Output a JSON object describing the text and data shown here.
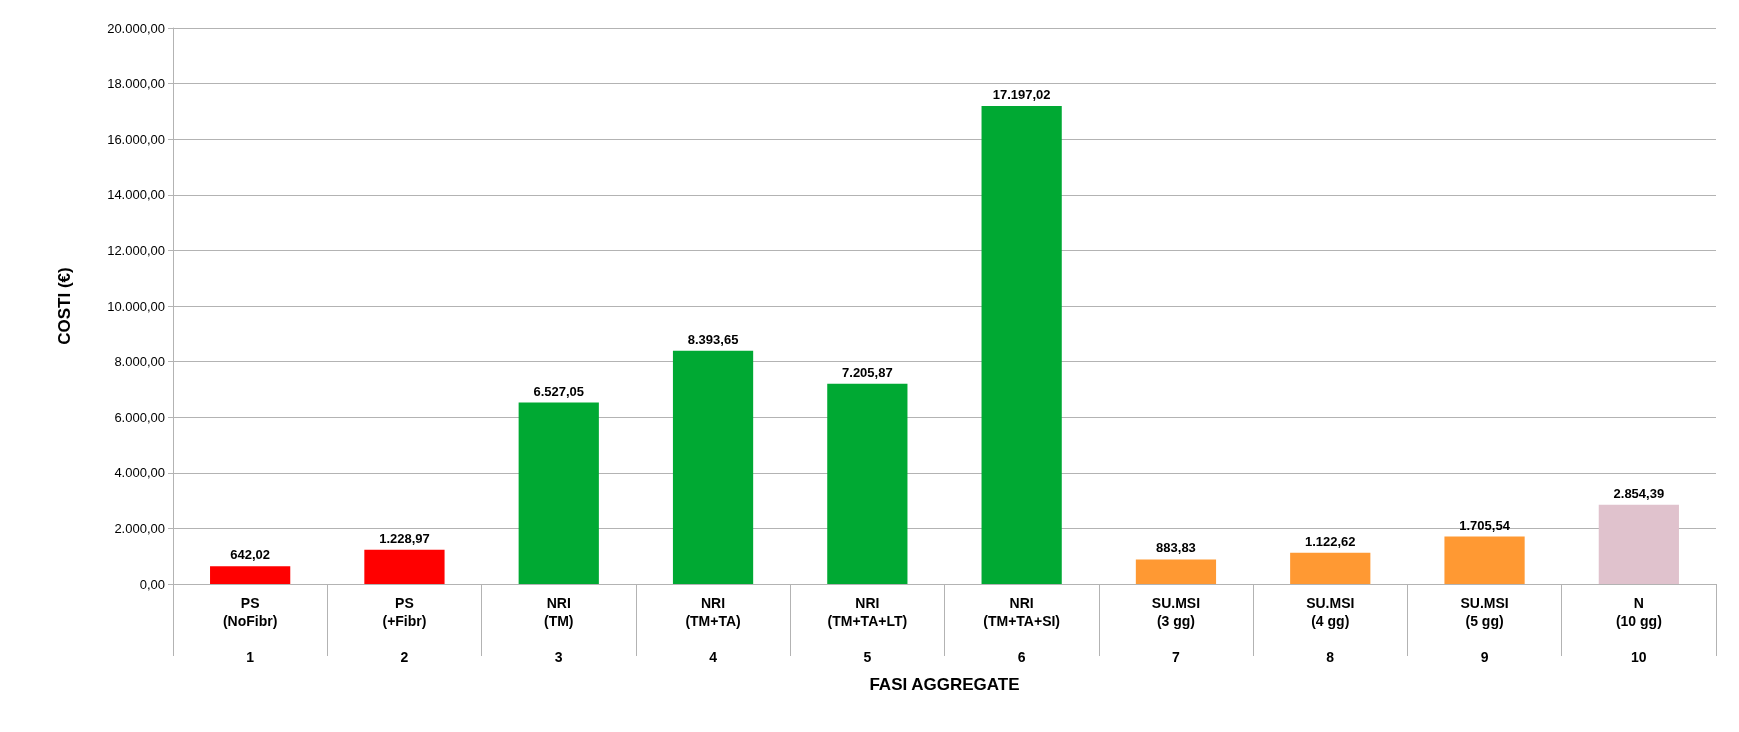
{
  "chart_data": {
    "type": "bar",
    "xlabel": "FASI AGGREGATE",
    "ylabel": "COSTI (€)",
    "categories": [
      "PS\n(NoFibr)\n\n1",
      "PS\n(+Fibr)\n\n2",
      "NRI\n(TM)\n\n3",
      "NRI\n(TM+TA)\n\n4",
      "NRI\n(TM+TA+LT)\n\n5",
      "NRI\n(TM+TA+SI)\n\n6",
      "SU.MSI\n(3 gg)\n\n7",
      "SU.MSI\n(4 gg)\n\n8",
      "SU.MSI\n(5 gg)\n\n9",
      "N\n(10 gg)\n\n10"
    ],
    "values": [
      642.02,
      1228.97,
      6527.05,
      8393.65,
      7205.87,
      17197.02,
      883.83,
      1122.62,
      1705.54,
      2854.39
    ],
    "value_labels": [
      "642,02",
      "1.228,97",
      "6.527,05",
      "8.393,65",
      "7.205,87",
      "17.197,02",
      "883,83",
      "1.122,62",
      "1.705,54",
      "2.854,39"
    ],
    "colors": [
      "#ff0000",
      "#ff0000",
      "#00a933",
      "#00a933",
      "#00a933",
      "#00a933",
      "#ff9933",
      "#ff9933",
      "#ff9933",
      "#e0c2cd"
    ],
    "ylim": [
      0,
      20000
    ],
    "yticks": [
      {
        "value": 0,
        "label": "0,00"
      },
      {
        "value": 2000,
        "label": "2.000,00"
      },
      {
        "value": 4000,
        "label": "4.000,00"
      },
      {
        "value": 6000,
        "label": "6.000,00"
      },
      {
        "value": 8000,
        "label": "8.000,00"
      },
      {
        "value": 10000,
        "label": "10.000,00"
      },
      {
        "value": 12000,
        "label": "12.000,00"
      },
      {
        "value": 14000,
        "label": "14.000,00"
      },
      {
        "value": 16000,
        "label": "16.000,00"
      },
      {
        "value": 18000,
        "label": "18.000,00"
      },
      {
        "value": 20000,
        "label": "20.000,00"
      }
    ],
    "grid": "y"
  }
}
